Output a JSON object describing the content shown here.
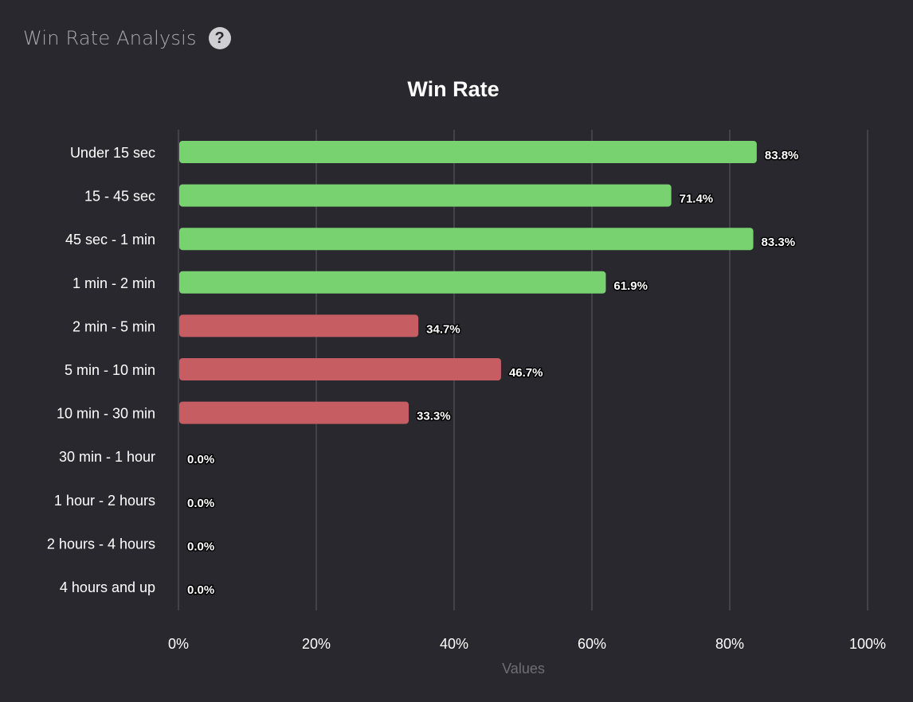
{
  "panel": {
    "title": "Win Rate Analysis",
    "help_icon": "question-circle-icon"
  },
  "colors": {
    "background": "#29282e",
    "win": "#77d26f",
    "loss": "#c55d62",
    "grid": "#4a4a50",
    "text": "#ffffff",
    "muted": "#6e6e74"
  },
  "chart_data": {
    "type": "bar",
    "orientation": "horizontal",
    "title": "Win Rate",
    "xlabel": "Values",
    "ylabel": "",
    "xlim": [
      0,
      100
    ],
    "x_ticks": [
      "0%",
      "20%",
      "40%",
      "60%",
      "80%",
      "100%"
    ],
    "x_tick_values": [
      0,
      20,
      40,
      60,
      80,
      100
    ],
    "grid": true,
    "categories": [
      "Under 15 sec",
      "15 - 45 sec",
      "45 sec - 1 min",
      "1 min - 2 min",
      "2 min - 5 min",
      "5 min - 10 min",
      "10 min - 30 min",
      "30 min - 1 hour",
      "1 hour - 2 hours",
      "2 hours - 4 hours",
      "4 hours and up"
    ],
    "values": [
      83.8,
      71.4,
      83.3,
      61.9,
      34.7,
      46.7,
      33.3,
      0.0,
      0.0,
      0.0,
      0.0
    ],
    "data_labels": [
      "83.8%",
      "71.4%",
      "83.3%",
      "61.9%",
      "34.7%",
      "46.7%",
      "33.3%",
      "0.0%",
      "0.0%",
      "0.0%",
      "0.0%"
    ],
    "bar_colors": [
      "#77d26f",
      "#77d26f",
      "#77d26f",
      "#77d26f",
      "#c55d62",
      "#c55d62",
      "#c55d62",
      "#c55d62",
      "#c55d62",
      "#c55d62",
      "#c55d62"
    ]
  }
}
